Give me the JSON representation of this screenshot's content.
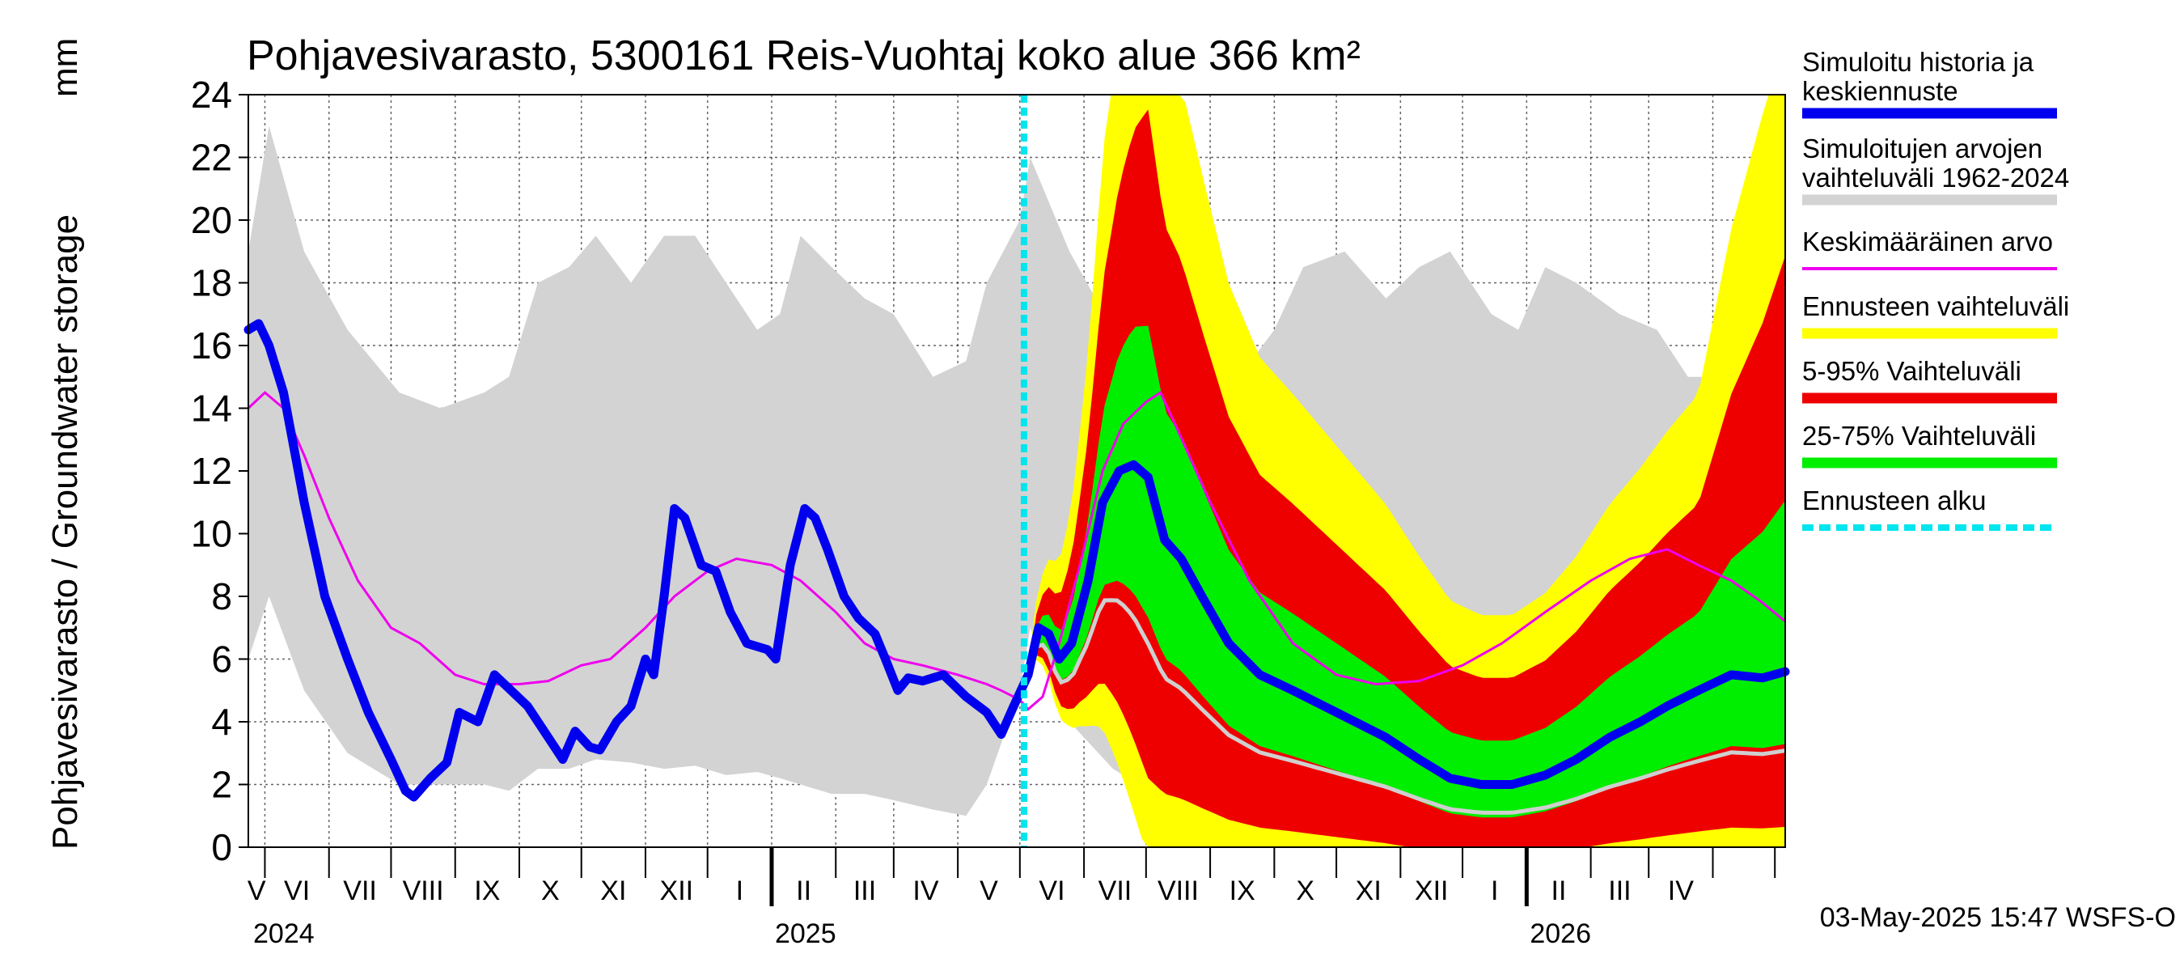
{
  "chart_data": {
    "type": "area",
    "title": "Pohjavesivarasto, 5300161 Reis-Vuohtaj koko alue 366 km²",
    "ylabel": "Pohjavesivarasto / Groundwater storage",
    "yunit": "mm",
    "ylim": [
      0,
      24
    ],
    "yticks": [
      "0",
      "2",
      "4",
      "6",
      "8",
      "10",
      "12",
      "14",
      "16",
      "18",
      "20",
      "22",
      "24"
    ],
    "grid": true,
    "legend_position": "right",
    "months": [
      "V",
      "VI",
      "VII",
      "VIII",
      "IX",
      "X",
      "XI",
      "XII",
      "I",
      "II",
      "III",
      "IV",
      "V",
      "VI",
      "VII",
      "VIII",
      "IX",
      "X",
      "XI",
      "XII",
      "I",
      "II",
      "III",
      "IV"
    ],
    "years": [
      "2024",
      "2025",
      "2026"
    ],
    "x_start": "2024-04-23",
    "x_end": "2026-05-06",
    "forecast_start": "2025-05-03",
    "footer": "03-May-2025 15:47 WSFS-O",
    "colors": {
      "history": "#0000ee",
      "range": "#d3d3d3",
      "mean": "#ee00ee",
      "forecast_range": "#ffff00",
      "p5_95": "#ee0000",
      "p25_75": "#00ee00",
      "forecast_start": "#00e5ee",
      "median_grey": "#cfcfcf"
    },
    "legend": [
      {
        "label": "Simuloitu historia ja",
        "label2": "keskiennuste",
        "color": "#0000ee",
        "style": "solid"
      },
      {
        "label": "Simuloitujen arvojen",
        "label2": "vaihteluväli 1962-2024",
        "color": "#d3d3d3",
        "style": "solid"
      },
      {
        "label": "Keskimääräinen arvo",
        "label2": "",
        "color": "#ee00ee",
        "style": "thin"
      },
      {
        "label": "Ennusteen vaihteluväli",
        "label2": "",
        "color": "#ffff00",
        "style": "solid"
      },
      {
        "label": "5-95% Vaihteluväli",
        "label2": "",
        "color": "#ee0000",
        "style": "solid"
      },
      {
        "label": "25-75% Vaihteluväli",
        "label2": "",
        "color": "#00ee00",
        "style": "solid"
      },
      {
        "label": "Ennusteen alku",
        "label2": "",
        "color": "#00e5ee",
        "style": "dashed"
      }
    ],
    "history_range": [
      [
        "2024-04-23",
        6,
        19
      ],
      [
        "2024-05-03",
        8,
        23
      ],
      [
        "2024-05-20",
        5,
        19
      ],
      [
        "2024-06-10",
        3,
        16.5
      ],
      [
        "2024-07-05",
        2,
        14.5
      ],
      [
        "2024-07-25",
        2,
        14
      ],
      [
        "2024-08-15",
        2,
        14.5
      ],
      [
        "2024-08-27",
        1.8,
        15
      ],
      [
        "2024-09-10",
        2.5,
        18
      ],
      [
        "2024-09-25",
        2.5,
        18.5
      ],
      [
        "2024-10-08",
        2.8,
        19.5
      ],
      [
        "2024-10-25",
        2.7,
        18
      ],
      [
        "2024-11-10",
        2.5,
        19.5
      ],
      [
        "2024-11-25",
        2.6,
        19.5
      ],
      [
        "2024-12-10",
        2.3,
        18
      ],
      [
        "2024-12-25",
        2.4,
        16.5
      ],
      [
        "2025-01-05",
        2.2,
        17
      ],
      [
        "2025-01-15",
        2,
        19.5
      ],
      [
        "2025-01-30",
        1.7,
        18.5
      ],
      [
        "2025-02-15",
        1.7,
        17.5
      ],
      [
        "2025-03-01",
        1.5,
        17
      ],
      [
        "2025-03-20",
        1.2,
        15
      ],
      [
        "2025-04-05",
        1,
        15.5
      ],
      [
        "2025-04-15",
        2,
        18
      ],
      [
        "2025-05-01",
        5,
        20
      ],
      [
        "2025-05-06",
        7,
        22
      ],
      [
        "2025-05-25",
        4,
        19
      ],
      [
        "2025-06-15",
        2.5,
        16.5
      ],
      [
        "2025-07-10",
        1.5,
        14.5
      ],
      [
        "2025-07-30",
        1.5,
        14.5
      ],
      [
        "2025-08-15",
        1.3,
        15
      ],
      [
        "2025-09-01",
        1.8,
        16.5
      ],
      [
        "2025-09-15",
        2.5,
        18.5
      ],
      [
        "2025-10-05",
        2.8,
        19
      ],
      [
        "2025-10-25",
        2.6,
        17.5
      ],
      [
        "2025-11-10",
        2.5,
        18.5
      ],
      [
        "2025-11-25",
        2.6,
        19
      ],
      [
        "2025-12-15",
        2.4,
        17
      ],
      [
        "2025-12-28",
        2.3,
        16.5
      ],
      [
        "2026-01-10",
        2.2,
        18.5
      ],
      [
        "2026-01-25",
        2,
        18
      ],
      [
        "2026-02-15",
        1.7,
        17
      ],
      [
        "2026-03-05",
        1.5,
        16.5
      ],
      [
        "2026-03-20",
        1,
        15
      ],
      [
        "2026-04-05",
        1,
        15
      ],
      [
        "2026-04-20",
        2,
        18
      ],
      [
        "2026-05-06",
        4,
        20
      ]
    ],
    "history": [
      [
        "2024-04-23",
        16.5
      ],
      [
        "2024-04-28",
        16.7
      ],
      [
        "2024-05-03",
        16
      ],
      [
        "2024-05-10",
        14.5
      ],
      [
        "2024-05-20",
        11
      ],
      [
        "2024-05-30",
        8
      ],
      [
        "2024-06-10",
        6
      ],
      [
        "2024-06-20",
        4.3
      ],
      [
        "2024-07-01",
        2.8
      ],
      [
        "2024-07-08",
        1.8
      ],
      [
        "2024-07-12",
        1.6
      ],
      [
        "2024-07-20",
        2.2
      ],
      [
        "2024-07-28",
        2.7
      ],
      [
        "2024-08-03",
        4.3
      ],
      [
        "2024-08-12",
        4
      ],
      [
        "2024-08-20",
        5.5
      ],
      [
        "2024-08-28",
        5
      ],
      [
        "2024-09-05",
        4.5
      ],
      [
        "2024-09-15",
        3.5
      ],
      [
        "2024-09-22",
        2.8
      ],
      [
        "2024-09-28",
        3.7
      ],
      [
        "2024-10-05",
        3.2
      ],
      [
        "2024-10-10",
        3.1
      ],
      [
        "2024-10-18",
        4
      ],
      [
        "2024-10-25",
        4.5
      ],
      [
        "2024-11-01",
        6
      ],
      [
        "2024-11-05",
        5.5
      ],
      [
        "2024-11-10",
        8
      ],
      [
        "2024-11-15",
        10.8
      ],
      [
        "2024-11-20",
        10.5
      ],
      [
        "2024-11-28",
        9
      ],
      [
        "2024-12-05",
        8.8
      ],
      [
        "2024-12-12",
        7.5
      ],
      [
        "2024-12-20",
        6.5
      ],
      [
        "2024-12-30",
        6.3
      ],
      [
        "2025-01-03",
        6
      ],
      [
        "2025-01-10",
        9
      ],
      [
        "2025-01-17",
        10.8
      ],
      [
        "2025-01-22",
        10.5
      ],
      [
        "2025-01-28",
        9.5
      ],
      [
        "2025-02-05",
        8
      ],
      [
        "2025-02-12",
        7.3
      ],
      [
        "2025-02-20",
        6.8
      ],
      [
        "2025-02-25",
        6
      ],
      [
        "2025-03-03",
        5
      ],
      [
        "2025-03-08",
        5.4
      ],
      [
        "2025-03-15",
        5.3
      ],
      [
        "2025-03-25",
        5.5
      ],
      [
        "2025-04-05",
        4.8
      ],
      [
        "2025-04-15",
        4.3
      ],
      [
        "2025-04-22",
        3.6
      ],
      [
        "2025-04-28",
        4.5
      ],
      [
        "2025-05-05",
        5.5
      ],
      [
        "2025-05-10",
        7
      ],
      [
        "2025-05-15",
        6.8
      ],
      [
        "2025-05-20",
        6
      ],
      [
        "2025-05-26",
        6.5
      ],
      [
        "2025-06-03",
        8.5
      ],
      [
        "2025-06-10",
        11
      ],
      [
        "2025-06-18",
        12
      ],
      [
        "2025-06-25",
        12.2
      ],
      [
        "2025-07-02",
        11.8
      ],
      [
        "2025-07-10",
        9.8
      ],
      [
        "2025-07-18",
        9.2
      ],
      [
        "2025-07-28",
        8
      ],
      [
        "2025-08-10",
        6.5
      ],
      [
        "2025-08-25",
        5.5
      ],
      [
        "2025-09-10",
        5
      ],
      [
        "2025-09-25",
        4.5
      ],
      [
        "2025-10-10",
        4
      ],
      [
        "2025-10-25",
        3.5
      ],
      [
        "2025-11-10",
        2.8
      ],
      [
        "2025-11-25",
        2.2
      ],
      [
        "2025-12-10",
        2
      ],
      [
        "2025-12-25",
        2
      ],
      [
        "2026-01-10",
        2.3
      ],
      [
        "2026-01-25",
        2.8
      ],
      [
        "2026-02-10",
        3.5
      ],
      [
        "2026-02-25",
        4
      ],
      [
        "2026-03-10",
        4.5
      ],
      [
        "2026-03-25",
        5
      ],
      [
        "2026-04-10",
        5.5
      ],
      [
        "2026-04-25",
        5.4
      ],
      [
        "2026-05-06",
        5.6
      ]
    ],
    "mean": [
      [
        "2024-04-23",
        14
      ],
      [
        "2024-05-01",
        14.5
      ],
      [
        "2024-05-10",
        14
      ],
      [
        "2024-05-20",
        12.5
      ],
      [
        "2024-06-01",
        10.5
      ],
      [
        "2024-06-15",
        8.5
      ],
      [
        "2024-07-01",
        7
      ],
      [
        "2024-07-15",
        6.5
      ],
      [
        "2024-08-01",
        5.5
      ],
      [
        "2024-08-15",
        5.2
      ],
      [
        "2024-09-01",
        5.2
      ],
      [
        "2024-09-15",
        5.3
      ],
      [
        "2024-10-01",
        5.8
      ],
      [
        "2024-10-15",
        6
      ],
      [
        "2024-11-01",
        7
      ],
      [
        "2024-11-15",
        8
      ],
      [
        "2024-12-01",
        8.8
      ],
      [
        "2024-12-15",
        9.2
      ],
      [
        "2025-01-01",
        9
      ],
      [
        "2025-01-15",
        8.5
      ],
      [
        "2025-02-01",
        7.5
      ],
      [
        "2025-02-15",
        6.5
      ],
      [
        "2025-03-01",
        6
      ],
      [
        "2025-03-15",
        5.8
      ],
      [
        "2025-04-01",
        5.5
      ],
      [
        "2025-04-15",
        5.2
      ],
      [
        "2025-04-22",
        5
      ],
      [
        "2025-05-01",
        4.7
      ],
      [
        "2025-05-05",
        4.4
      ],
      [
        "2025-05-12",
        4.8
      ],
      [
        "2025-05-20",
        6.5
      ],
      [
        "2025-05-30",
        9
      ],
      [
        "2025-06-10",
        12
      ],
      [
        "2025-06-20",
        13.5
      ],
      [
        "2025-07-01",
        14.2
      ],
      [
        "2025-07-08",
        14.5
      ],
      [
        "2025-07-15",
        13.5
      ],
      [
        "2025-08-01",
        11
      ],
      [
        "2025-08-20",
        8.5
      ],
      [
        "2025-09-10",
        6.5
      ],
      [
        "2025-10-01",
        5.5
      ],
      [
        "2025-10-20",
        5.2
      ],
      [
        "2025-11-10",
        5.3
      ],
      [
        "2025-12-01",
        5.8
      ],
      [
        "2025-12-20",
        6.5
      ],
      [
        "2026-01-10",
        7.5
      ],
      [
        "2026-02-01",
        8.5
      ],
      [
        "2026-02-20",
        9.2
      ],
      [
        "2026-03-10",
        9.5
      ],
      [
        "2026-03-25",
        9
      ],
      [
        "2026-04-10",
        8.5
      ],
      [
        "2026-04-25",
        7.8
      ],
      [
        "2026-05-06",
        7.2
      ]
    ]
  }
}
